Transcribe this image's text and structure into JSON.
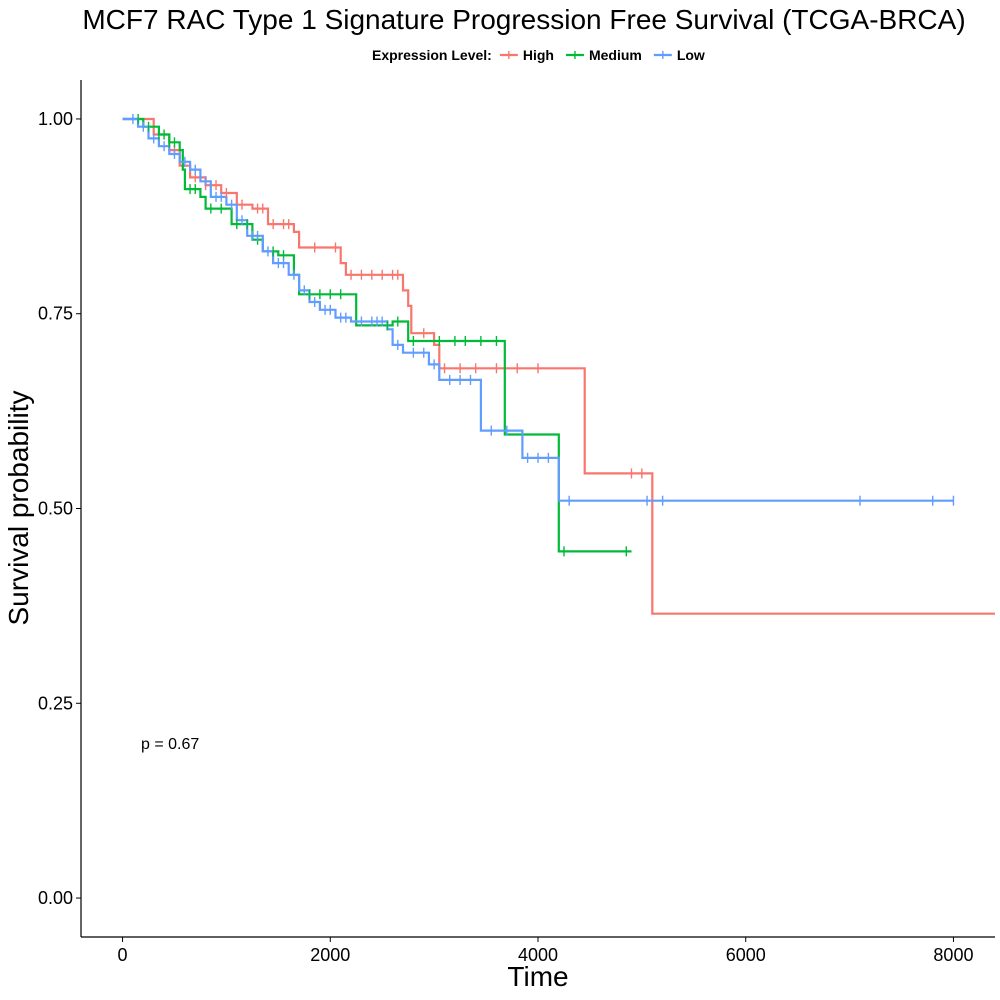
{
  "chart_data": {
    "type": "line",
    "subtype": "kaplan-meier step",
    "title": "MCF7 RAC Type 1 Signature Progression Free Survival (TCGA-BRCA)",
    "xlabel": "Time",
    "ylabel": "Survival probability",
    "xlim": [
      -400,
      8400
    ],
    "ylim": [
      -0.05,
      1.05
    ],
    "x_ticks": [
      0,
      2000,
      4000,
      6000,
      8000
    ],
    "x_tick_labels": [
      "0",
      "2000",
      "4000",
      "6000",
      "8000"
    ],
    "y_ticks": [
      0,
      0.25,
      0.5,
      0.75,
      1.0
    ],
    "y_tick_labels": [
      "0.00",
      "0.25",
      "0.50",
      "0.75",
      "1.00"
    ],
    "grid": false,
    "legend": {
      "title": "Expression Level:",
      "placement": "top",
      "entries": [
        "High",
        "Medium",
        "Low"
      ]
    },
    "annotation": {
      "text": "p = 0.67",
      "x": 200,
      "y": 0.2
    },
    "series": [
      {
        "name": "High",
        "color": "#F8766D",
        "steps": [
          [
            0,
            1.0
          ],
          [
            300,
            0.98
          ],
          [
            450,
            0.96
          ],
          [
            550,
            0.94
          ],
          [
            650,
            0.925
          ],
          [
            800,
            0.915
          ],
          [
            950,
            0.905
          ],
          [
            1100,
            0.89
          ],
          [
            1250,
            0.885
          ],
          [
            1400,
            0.865
          ],
          [
            1650,
            0.855
          ],
          [
            1700,
            0.835
          ],
          [
            2100,
            0.815
          ],
          [
            2150,
            0.8
          ],
          [
            2700,
            0.78
          ],
          [
            2750,
            0.76
          ],
          [
            2780,
            0.725
          ],
          [
            3000,
            0.71
          ],
          [
            3050,
            0.68
          ],
          [
            4450,
            0.545
          ],
          [
            5100,
            0.365
          ],
          [
            8400,
            0.365
          ]
        ],
        "censor_times": [
          500,
          700,
          800,
          900,
          1000,
          1150,
          1300,
          1350,
          1450,
          1550,
          1600,
          1850,
          2050,
          2200,
          2300,
          2400,
          2500,
          2600,
          2650,
          2900,
          3100,
          3250,
          3400,
          3600,
          3800,
          4000,
          4900,
          5000
        ]
      },
      {
        "name": "Medium",
        "color": "#00BA38",
        "steps": [
          [
            0,
            1.0
          ],
          [
            200,
            0.99
          ],
          [
            350,
            0.98
          ],
          [
            450,
            0.97
          ],
          [
            550,
            0.96
          ],
          [
            580,
            0.935
          ],
          [
            600,
            0.91
          ],
          [
            750,
            0.9
          ],
          [
            800,
            0.885
          ],
          [
            1050,
            0.865
          ],
          [
            1250,
            0.845
          ],
          [
            1350,
            0.83
          ],
          [
            1500,
            0.825
          ],
          [
            1650,
            0.8
          ],
          [
            1700,
            0.775
          ],
          [
            2250,
            0.735
          ],
          [
            2600,
            0.74
          ],
          [
            2750,
            0.715
          ],
          [
            3650,
            0.715
          ],
          [
            3680,
            0.595
          ],
          [
            4200,
            0.445
          ],
          [
            4900,
            0.445
          ]
        ],
        "censor_times": [
          150,
          250,
          350,
          400,
          450,
          500,
          650,
          700,
          850,
          950,
          1100,
          1200,
          1300,
          1450,
          1550,
          1800,
          1900,
          2000,
          2100,
          2550,
          2650,
          2800,
          3050,
          3200,
          3300,
          3450,
          3600,
          4250,
          4850
        ]
      },
      {
        "name": "Low",
        "color": "#619CFF",
        "steps": [
          [
            0,
            1.0
          ],
          [
            150,
            0.99
          ],
          [
            250,
            0.975
          ],
          [
            350,
            0.965
          ],
          [
            450,
            0.955
          ],
          [
            550,
            0.945
          ],
          [
            650,
            0.935
          ],
          [
            750,
            0.92
          ],
          [
            850,
            0.9
          ],
          [
            1000,
            0.89
          ],
          [
            1100,
            0.87
          ],
          [
            1200,
            0.85
          ],
          [
            1350,
            0.83
          ],
          [
            1450,
            0.815
          ],
          [
            1600,
            0.8
          ],
          [
            1700,
            0.78
          ],
          [
            1800,
            0.765
          ],
          [
            1900,
            0.755
          ],
          [
            2050,
            0.745
          ],
          [
            2200,
            0.74
          ],
          [
            2550,
            0.73
          ],
          [
            2600,
            0.71
          ],
          [
            2700,
            0.7
          ],
          [
            2950,
            0.685
          ],
          [
            3050,
            0.665
          ],
          [
            3450,
            0.6
          ],
          [
            3850,
            0.565
          ],
          [
            4200,
            0.51
          ],
          [
            8000,
            0.51
          ]
        ],
        "censor_times": [
          100,
          200,
          300,
          400,
          500,
          600,
          700,
          800,
          900,
          950,
          1050,
          1150,
          1250,
          1300,
          1400,
          1500,
          1550,
          1650,
          1750,
          1850,
          1950,
          2000,
          2100,
          2150,
          2300,
          2400,
          2450,
          2500,
          2650,
          2800,
          2900,
          3000,
          3150,
          3250,
          3350,
          3550,
          3700,
          3900,
          4000,
          4100,
          4300,
          5050,
          5200,
          7100,
          7800,
          8000
        ]
      }
    ]
  }
}
